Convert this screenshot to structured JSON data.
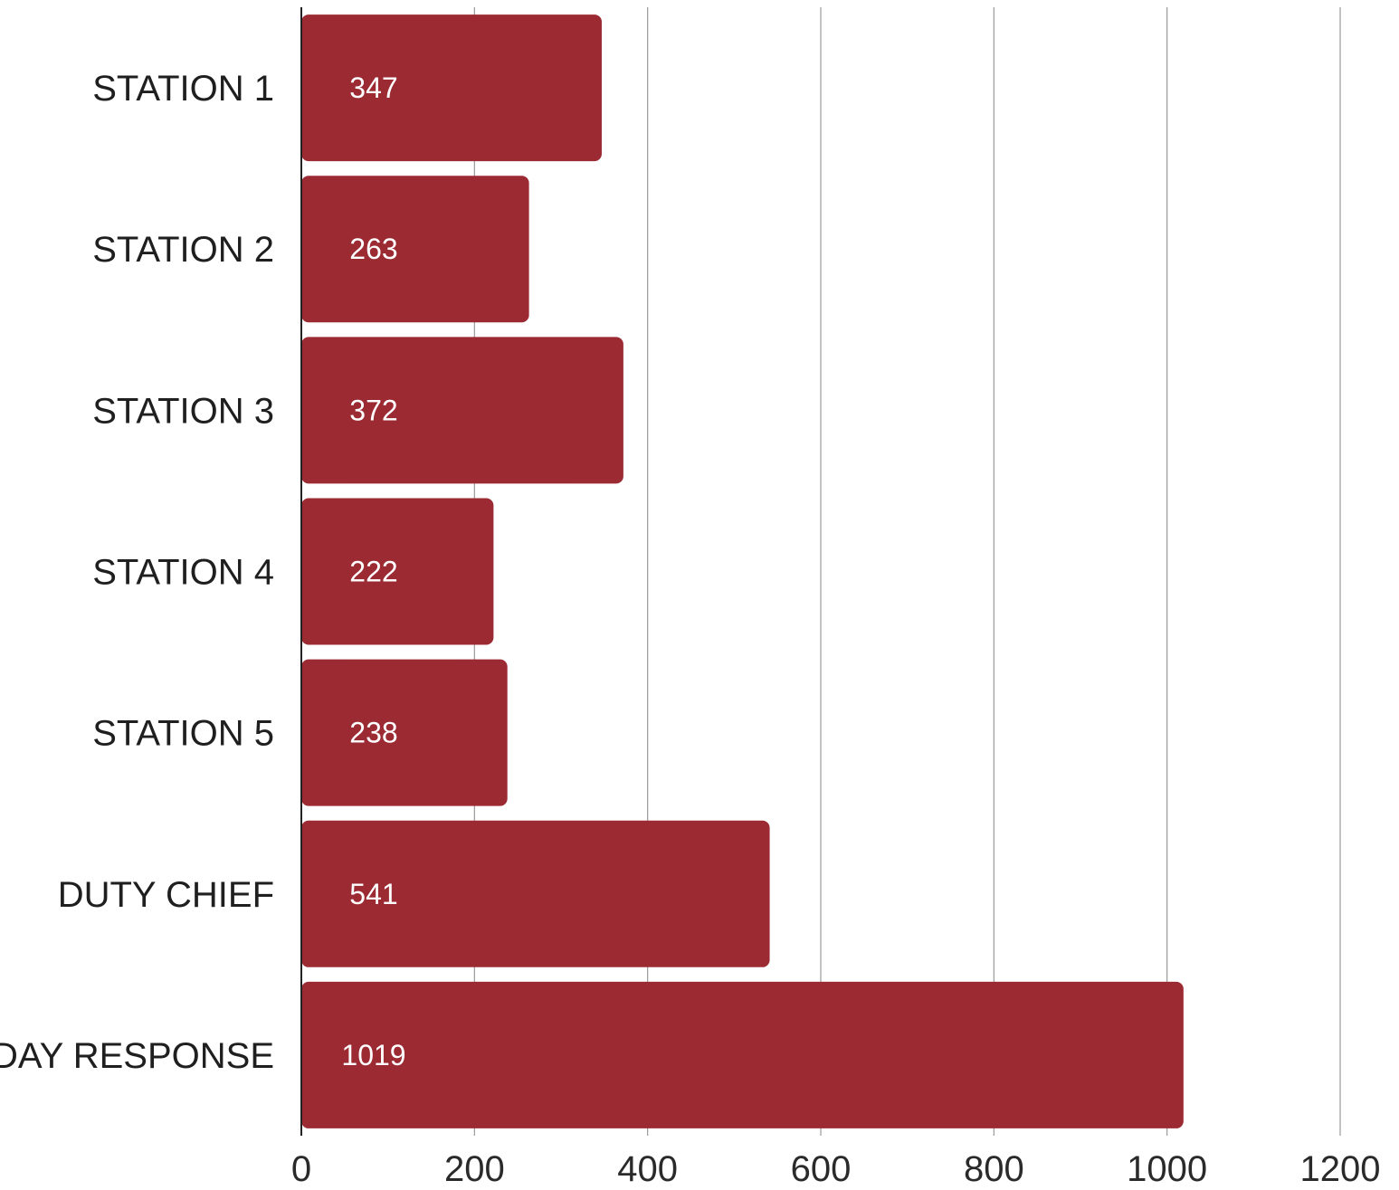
{
  "chart_data": {
    "type": "bar",
    "orientation": "horizontal",
    "categories": [
      "STATION 1",
      "STATION 2",
      "STATION 3",
      "STATION 4",
      "STATION 5",
      "DUTY CHIEF",
      "DAY RESPONSE"
    ],
    "values": [
      347,
      263,
      372,
      222,
      238,
      541,
      1019
    ],
    "data_labels": [
      "347",
      "263",
      "372",
      "222",
      "238",
      "541",
      "1019"
    ],
    "xlim": [
      0,
      1200
    ],
    "xticks": [
      0,
      200,
      400,
      600,
      800,
      1000,
      1200
    ],
    "xtick_labels": [
      "0",
      "200",
      "400",
      "600",
      "800",
      "1000",
      "1200"
    ],
    "grid": true,
    "bar_color": "#9b2a33"
  }
}
